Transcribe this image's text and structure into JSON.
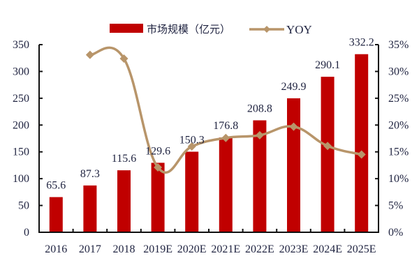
{
  "chart_data": {
    "type": "bar+line",
    "title": "",
    "categories": [
      "2016",
      "2017",
      "2018",
      "2019E",
      "2020E",
      "2021E",
      "2022E",
      "2023E",
      "2024E",
      "2025E"
    ],
    "series": [
      {
        "name": "市场规模（亿元）",
        "type": "bar",
        "axis": "left",
        "color": "#C00000",
        "values": [
          65.6,
          87.3,
          115.6,
          129.6,
          150.3,
          176.8,
          208.8,
          249.9,
          290.1,
          332.2
        ],
        "labels": [
          "65.6",
          "87.3",
          "115.6",
          "129.6",
          "150.3",
          "176.8",
          "208.8",
          "249.9",
          "290.1",
          "332.2"
        ]
      },
      {
        "name": "YOY",
        "type": "line",
        "axis": "right",
        "color": "#B8956A",
        "marker": "diamond",
        "values": [
          null,
          33.1,
          32.4,
          12.1,
          16.0,
          17.6,
          18.1,
          19.7,
          16.1,
          14.5
        ]
      }
    ],
    "left_axis": {
      "min": 0,
      "max": 350,
      "step": 50,
      "ticks": [
        "0",
        "50",
        "100",
        "150",
        "200",
        "250",
        "300",
        "350"
      ]
    },
    "right_axis": {
      "min": 0,
      "max": 35,
      "step": 5,
      "ticks": [
        "0%",
        "5%",
        "10%",
        "15%",
        "20%",
        "25%",
        "30%",
        "35%"
      ]
    },
    "xlabel": "",
    "ylabel": "",
    "grid": false,
    "legend_position": "top"
  },
  "legend": {
    "bar_label": "市场规模（亿元）",
    "line_label": "YOY"
  }
}
